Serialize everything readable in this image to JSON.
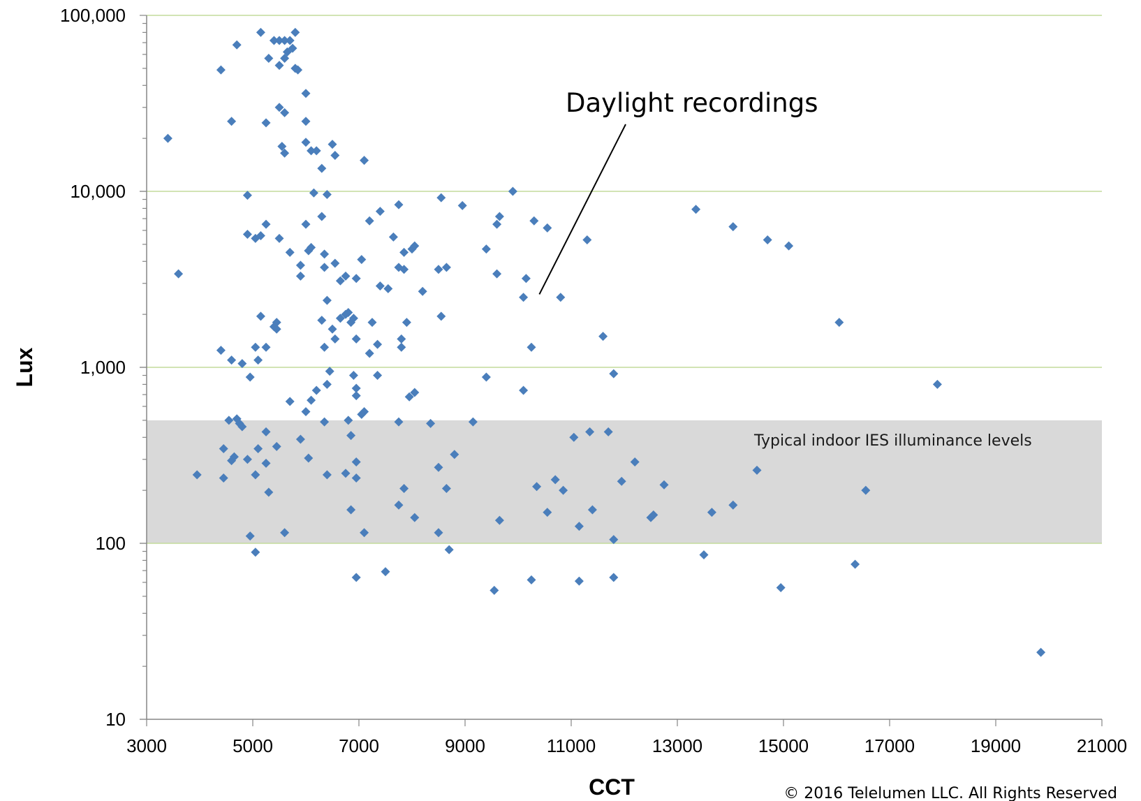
{
  "chart_data": {
    "type": "scatter",
    "xlabel": "CCT",
    "ylabel": "Lux",
    "xlim": [
      3000,
      21000
    ],
    "ylim": [
      10,
      100000
    ],
    "y_scale": "log",
    "x_ticks": [
      3000,
      5000,
      7000,
      9000,
      11000,
      13000,
      15000,
      17000,
      19000,
      21000
    ],
    "y_ticks": [
      10,
      100,
      1000,
      10000,
      100000
    ],
    "y_tick_labels": [
      "10",
      "100",
      "1,000",
      "10,000",
      "100,000"
    ],
    "grid": "horizontal major gridlines",
    "point_color": "#4a7ebb",
    "grid_color": "#c3dc9c",
    "band": {
      "y_from": 100,
      "y_to": 500,
      "color": "#d9d9d9",
      "label": "Typical indoor IES illuminance levels"
    },
    "annotation": {
      "text": "Daylight recordings",
      "points_to": [
        10400,
        2600
      ]
    },
    "copyright": "© 2016 Telelumen LLC. All Rights Reserved",
    "series": [
      {
        "points": [
          [
            5150,
            80000
          ],
          [
            5800,
            80000
          ],
          [
            5400,
            72000
          ],
          [
            5500,
            72000
          ],
          [
            5600,
            72000
          ],
          [
            5700,
            72000
          ],
          [
            4700,
            68000
          ],
          [
            5750,
            65000
          ],
          [
            5650,
            62000
          ],
          [
            5600,
            57000
          ],
          [
            5300,
            57000
          ],
          [
            5500,
            52000
          ],
          [
            5800,
            50000
          ],
          [
            5850,
            49000
          ],
          [
            4400,
            49000
          ],
          [
            6000,
            36000
          ],
          [
            5500,
            30000
          ],
          [
            5600,
            28000
          ],
          [
            4600,
            25000
          ],
          [
            6000,
            25000
          ],
          [
            5250,
            24500
          ],
          [
            3400,
            20000
          ],
          [
            6000,
            19000
          ],
          [
            6500,
            18500
          ],
          [
            5550,
            18000
          ],
          [
            5600,
            16500
          ],
          [
            6100,
            17000
          ],
          [
            6200,
            17000
          ],
          [
            6550,
            16000
          ],
          [
            7100,
            15000
          ],
          [
            6300,
            13500
          ],
          [
            6150,
            9800
          ],
          [
            6400,
            9600
          ],
          [
            4900,
            9500
          ],
          [
            9900,
            10000
          ],
          [
            8550,
            9200
          ],
          [
            8950,
            8300
          ],
          [
            7750,
            8400
          ],
          [
            13350,
            7900
          ],
          [
            7400,
            7700
          ],
          [
            6300,
            7200
          ],
          [
            9650,
            7200
          ],
          [
            7200,
            6800
          ],
          [
            10300,
            6800
          ],
          [
            6000,
            6500
          ],
          [
            5250,
            6500
          ],
          [
            9600,
            6500
          ],
          [
            14050,
            6300
          ],
          [
            10550,
            6200
          ],
          [
            4900,
            5700
          ],
          [
            5050,
            5400
          ],
          [
            5150,
            5600
          ],
          [
            5500,
            5400
          ],
          [
            7650,
            5500
          ],
          [
            11300,
            5300
          ],
          [
            14700,
            5300
          ],
          [
            15100,
            4900
          ],
          [
            8050,
            4900
          ],
          [
            8000,
            4700
          ],
          [
            9400,
            4700
          ],
          [
            6050,
            4600
          ],
          [
            6100,
            4800
          ],
          [
            5700,
            4500
          ],
          [
            7850,
            4500
          ],
          [
            6350,
            4400
          ],
          [
            7050,
            4100
          ],
          [
            6550,
            3900
          ],
          [
            5900,
            3800
          ],
          [
            6350,
            3700
          ],
          [
            7750,
            3700
          ],
          [
            7850,
            3600
          ],
          [
            8500,
            3600
          ],
          [
            8650,
            3700
          ],
          [
            9600,
            3400
          ],
          [
            3600,
            3400
          ],
          [
            5900,
            3300
          ],
          [
            6750,
            3300
          ],
          [
            6650,
            3100
          ],
          [
            6950,
            3200
          ],
          [
            10150,
            3200
          ],
          [
            7400,
            2900
          ],
          [
            7550,
            2800
          ],
          [
            8200,
            2700
          ],
          [
            10100,
            2500
          ],
          [
            10800,
            2500
          ],
          [
            6400,
            2400
          ],
          [
            6800,
            2050
          ],
          [
            6750,
            2000
          ],
          [
            6650,
            1900
          ],
          [
            6300,
            1850
          ],
          [
            6900,
            1900
          ],
          [
            5150,
            1950
          ],
          [
            8550,
            1950
          ],
          [
            5450,
            1800
          ],
          [
            7250,
            1800
          ],
          [
            7900,
            1800
          ],
          [
            16050,
            1800
          ],
          [
            6850,
            1800
          ],
          [
            5400,
            1700
          ],
          [
            5450,
            1650
          ],
          [
            6500,
            1650
          ],
          [
            11600,
            1500
          ],
          [
            6550,
            1450
          ],
          [
            6950,
            1450
          ],
          [
            7800,
            1450
          ],
          [
            7350,
            1350
          ],
          [
            7800,
            1300
          ],
          [
            6350,
            1300
          ],
          [
            5050,
            1300
          ],
          [
            5250,
            1300
          ],
          [
            10250,
            1300
          ],
          [
            4400,
            1250
          ],
          [
            7200,
            1200
          ],
          [
            5100,
            1100
          ],
          [
            4600,
            1100
          ],
          [
            4800,
            1050
          ],
          [
            6450,
            950
          ],
          [
            4950,
            880
          ],
          [
            6900,
            900
          ],
          [
            7350,
            900
          ],
          [
            9400,
            880
          ],
          [
            11800,
            920
          ],
          [
            17900,
            800
          ],
          [
            6400,
            800
          ],
          [
            6950,
            760
          ],
          [
            6200,
            740
          ],
          [
            8050,
            720
          ],
          [
            10100,
            740
          ],
          [
            6950,
            690
          ],
          [
            7950,
            680
          ],
          [
            5700,
            640
          ],
          [
            6100,
            650
          ],
          [
            6000,
            560
          ],
          [
            7100,
            560
          ],
          [
            7050,
            540
          ],
          [
            4550,
            500
          ],
          [
            4700,
            510
          ],
          [
            4750,
            480
          ],
          [
            4800,
            460
          ],
          [
            6350,
            490
          ],
          [
            6800,
            500
          ],
          [
            7750,
            490
          ],
          [
            8350,
            480
          ],
          [
            9150,
            490
          ],
          [
            5250,
            430
          ],
          [
            11350,
            430
          ],
          [
            11700,
            430
          ],
          [
            6850,
            410
          ],
          [
            11050,
            400
          ],
          [
            5900,
            390
          ],
          [
            4450,
            345
          ],
          [
            5100,
            345
          ],
          [
            5450,
            355
          ],
          [
            4650,
            310
          ],
          [
            4600,
            295
          ],
          [
            4900,
            300
          ],
          [
            5250,
            285
          ],
          [
            6050,
            305
          ],
          [
            6950,
            290
          ],
          [
            8800,
            320
          ],
          [
            12200,
            290
          ],
          [
            8500,
            270
          ],
          [
            14500,
            260
          ],
          [
            3950,
            245
          ],
          [
            4450,
            235
          ],
          [
            5050,
            245
          ],
          [
            6400,
            245
          ],
          [
            6750,
            250
          ],
          [
            6950,
            235
          ],
          [
            10700,
            230
          ],
          [
            11950,
            225
          ],
          [
            12750,
            215
          ],
          [
            10350,
            210
          ],
          [
            7850,
            205
          ],
          [
            8650,
            205
          ],
          [
            10850,
            200
          ],
          [
            16550,
            200
          ],
          [
            5300,
            195
          ],
          [
            7750,
            165
          ],
          [
            14050,
            165
          ],
          [
            6850,
            155
          ],
          [
            11400,
            155
          ],
          [
            10550,
            150
          ],
          [
            13650,
            150
          ],
          [
            12550,
            145
          ],
          [
            12500,
            140
          ],
          [
            8050,
            140
          ],
          [
            9650,
            135
          ],
          [
            11150,
            125
          ],
          [
            8500,
            115
          ],
          [
            5600,
            115
          ],
          [
            7100,
            115
          ],
          [
            4950,
            110
          ],
          [
            11800,
            105
          ],
          [
            8700,
            92
          ],
          [
            5050,
            89
          ],
          [
            13500,
            86
          ],
          [
            16350,
            76
          ],
          [
            7500,
            69
          ],
          [
            6950,
            64
          ],
          [
            11800,
            64
          ],
          [
            10250,
            62
          ],
          [
            11150,
            61
          ],
          [
            9550,
            54
          ],
          [
            14950,
            56
          ],
          [
            19850,
            24
          ]
        ]
      }
    ]
  }
}
